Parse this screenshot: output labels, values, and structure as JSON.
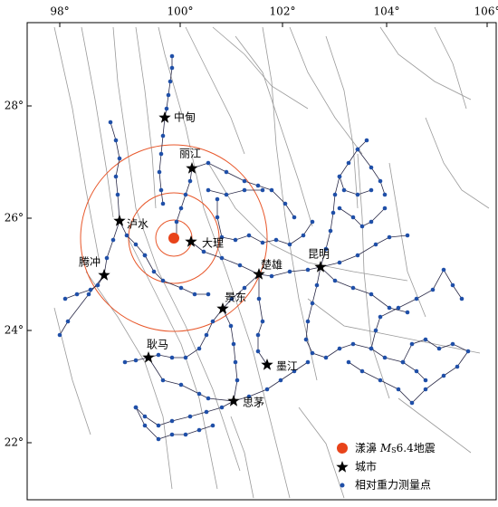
{
  "axes": {
    "x_labels": [
      "98°",
      "100°",
      "102°",
      "104°",
      "106°"
    ],
    "y_labels": [
      "28°",
      "26°",
      "24°",
      "22°"
    ]
  },
  "cities": [
    "中甸",
    "丽江",
    "泸水",
    "大理",
    "腾冲",
    "楚雄",
    "昆明",
    "景东",
    "耿马",
    "墨江",
    "思茅"
  ],
  "legend": {
    "earthquake": {
      "prefix": "漾濞",
      "symbol": "M",
      "subscript": "S",
      "suffix": "6.4地震"
    },
    "city": "城市",
    "station": "相对重力测量点"
  }
}
